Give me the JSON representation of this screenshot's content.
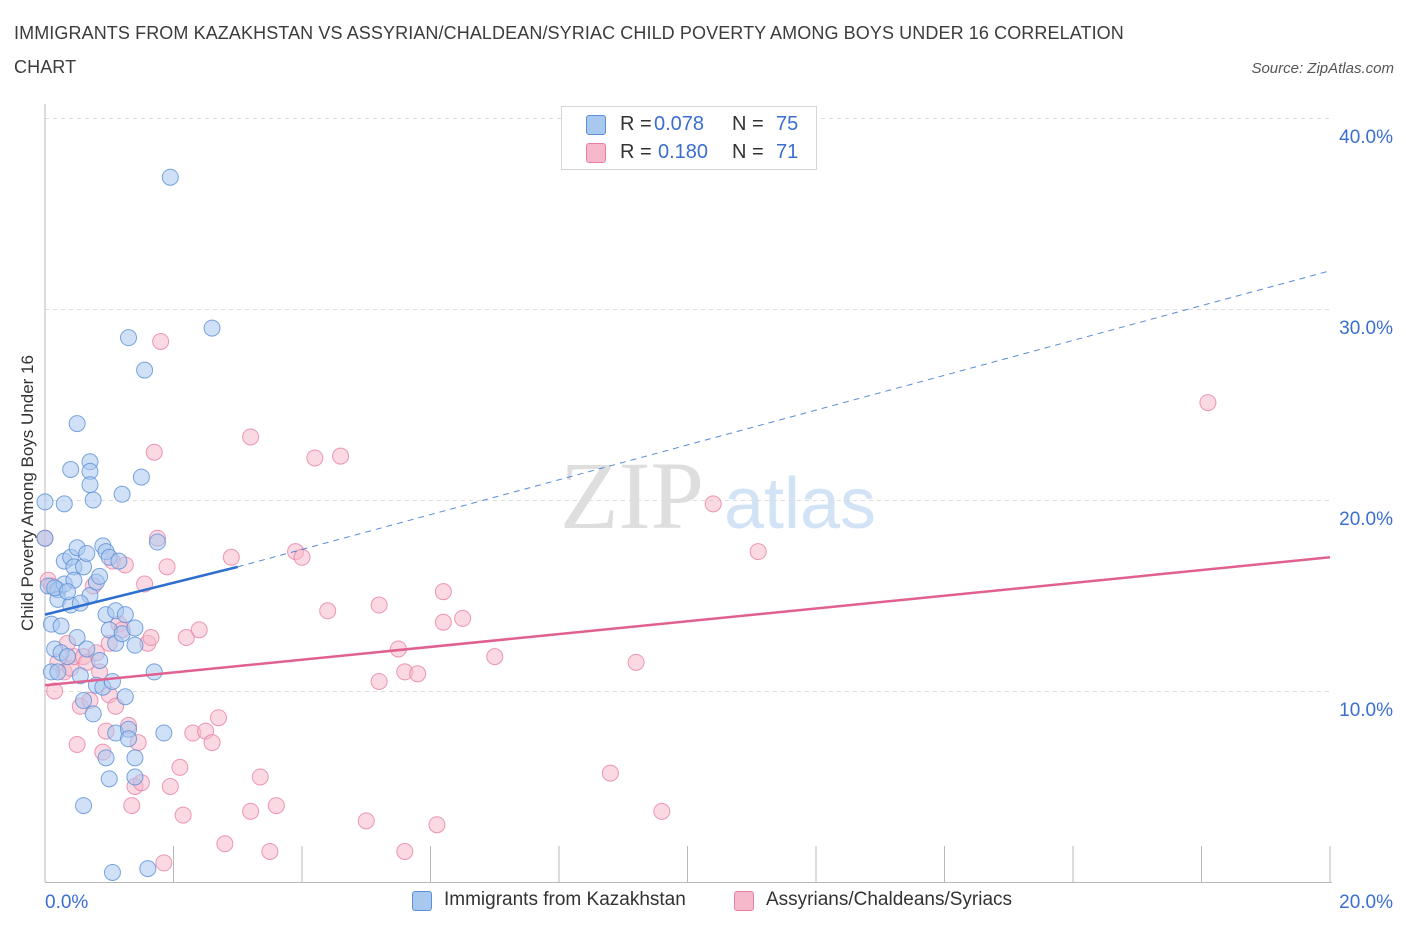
{
  "title": "IMMIGRANTS FROM KAZAKHSTAN VS ASSYRIAN/CHALDEAN/SYRIAC CHILD POVERTY AMONG BOYS UNDER 16 CORRELATION CHART",
  "source": "Source: ZipAtlas.com",
  "watermark": {
    "zip": "ZIP",
    "atlas": "atlas"
  },
  "legend": {
    "series1": {
      "r_label": "R =",
      "r_value": "0.078",
      "n_label": "N =",
      "n_value": "75"
    },
    "series2": {
      "r_label": "R =",
      "r_value": "0.180",
      "n_label": "N =",
      "n_value": "71"
    }
  },
  "colors": {
    "series1_fill": "#a9c8f0",
    "series1_stroke": "#5b8fd6",
    "series1_line": "#2f6fcf",
    "series2_fill": "#f6b9cc",
    "series2_stroke": "#e87fa3",
    "series2_line": "#e0608f",
    "grid": "#dcdcdc",
    "axis_text": "#3a6fd0"
  },
  "chart_data": {
    "type": "scatter",
    "title": "IMMIGRANTS FROM KAZAKHSTAN VS ASSYRIAN/CHALDEAN/SYRIAC CHILD POVERTY AMONG BOYS UNDER 16 CORRELATION CHART",
    "xlabel": "",
    "ylabel": "Child Poverty Among Boys Under 16",
    "xlim": [
      0,
      20
    ],
    "ylim": [
      0,
      40
    ],
    "x_tick_labels": [
      "0.0%",
      "20.0%"
    ],
    "y_ticks": [
      10,
      20,
      30,
      40
    ],
    "y_tick_labels": [
      "10.0%",
      "20.0%",
      "30.0%",
      "40.0%"
    ],
    "grid": true,
    "legend_position": "top-center",
    "series": [
      {
        "name": "Immigrants from Kazakhstan",
        "R": 0.078,
        "N": 75,
        "trend": {
          "x0": 0,
          "y0": 14.0,
          "x1": 3.0,
          "y1": 16.5,
          "dashed_to_x": 20,
          "dashed_to_y": 32.0
        },
        "points": [
          [
            0.0,
            19.9
          ],
          [
            0.0,
            18.0
          ],
          [
            0.05,
            15.5
          ],
          [
            0.1,
            13.5
          ],
          [
            0.1,
            11.0
          ],
          [
            0.15,
            12.2
          ],
          [
            0.2,
            15.3
          ],
          [
            0.2,
            14.8
          ],
          [
            0.25,
            12.0
          ],
          [
            0.3,
            19.8
          ],
          [
            0.3,
            16.8
          ],
          [
            0.3,
            15.6
          ],
          [
            0.35,
            11.8
          ],
          [
            0.4,
            21.6
          ],
          [
            0.4,
            17.0
          ],
          [
            0.4,
            14.5
          ],
          [
            0.45,
            16.5
          ],
          [
            0.45,
            15.8
          ],
          [
            0.5,
            24.0
          ],
          [
            0.5,
            17.5
          ],
          [
            0.5,
            12.8
          ],
          [
            0.55,
            10.8
          ],
          [
            0.6,
            9.5
          ],
          [
            0.6,
            4.0
          ],
          [
            0.6,
            16.5
          ],
          [
            0.65,
            17.2
          ],
          [
            0.7,
            22.0
          ],
          [
            0.7,
            21.5
          ],
          [
            0.7,
            20.8
          ],
          [
            0.7,
            15.0
          ],
          [
            0.75,
            20.0
          ],
          [
            0.75,
            8.8
          ],
          [
            0.8,
            15.7
          ],
          [
            0.8,
            10.3
          ],
          [
            0.85,
            16.0
          ],
          [
            0.9,
            17.6
          ],
          [
            0.9,
            10.2
          ],
          [
            0.95,
            17.3
          ],
          [
            0.95,
            14.0
          ],
          [
            0.95,
            6.5
          ],
          [
            1.0,
            5.4
          ],
          [
            1.0,
            13.2
          ],
          [
            1.0,
            17.0
          ],
          [
            1.05,
            10.5
          ],
          [
            1.05,
            0.5
          ],
          [
            1.1,
            14.2
          ],
          [
            1.1,
            12.5
          ],
          [
            1.1,
            7.8
          ],
          [
            1.15,
            16.8
          ],
          [
            1.2,
            13.0
          ],
          [
            1.2,
            20.3
          ],
          [
            1.25,
            9.7
          ],
          [
            1.25,
            14.0
          ],
          [
            1.3,
            8.0
          ],
          [
            1.3,
            7.5
          ],
          [
            1.3,
            28.5
          ],
          [
            1.4,
            13.3
          ],
          [
            1.4,
            12.4
          ],
          [
            1.4,
            5.5
          ],
          [
            1.4,
            6.5
          ],
          [
            1.5,
            21.2
          ],
          [
            1.55,
            26.8
          ],
          [
            1.6,
            0.7
          ],
          [
            1.7,
            11.0
          ],
          [
            1.75,
            17.8
          ],
          [
            1.85,
            7.8
          ],
          [
            1.95,
            36.9
          ],
          [
            2.6,
            29.0
          ],
          [
            0.15,
            15.4
          ],
          [
            0.25,
            13.4
          ],
          [
            0.35,
            15.2
          ],
          [
            0.55,
            14.6
          ],
          [
            0.65,
            12.2
          ],
          [
            0.85,
            11.6
          ],
          [
            0.2,
            11.0
          ]
        ]
      },
      {
        "name": "Assyrians/Chaldeans/Syriacs",
        "R": 0.18,
        "N": 71,
        "trend": {
          "x0": 0,
          "y0": 10.3,
          "x1": 20,
          "y1": 17.0
        },
        "points": [
          [
            0.0,
            18.0
          ],
          [
            0.05,
            15.8
          ],
          [
            0.1,
            15.5
          ],
          [
            0.15,
            10.0
          ],
          [
            0.2,
            11.5
          ],
          [
            0.3,
            11.0
          ],
          [
            0.35,
            12.5
          ],
          [
            0.4,
            11.2
          ],
          [
            0.45,
            11.8
          ],
          [
            0.5,
            7.2
          ],
          [
            0.55,
            9.2
          ],
          [
            0.6,
            11.8
          ],
          [
            0.65,
            11.5
          ],
          [
            0.7,
            9.5
          ],
          [
            0.75,
            15.5
          ],
          [
            0.8,
            12.0
          ],
          [
            0.85,
            11.0
          ],
          [
            0.9,
            6.8
          ],
          [
            0.95,
            7.9
          ],
          [
            1.0,
            12.5
          ],
          [
            1.0,
            9.8
          ],
          [
            1.05,
            16.8
          ],
          [
            1.1,
            9.2
          ],
          [
            1.15,
            13.5
          ],
          [
            1.2,
            13.2
          ],
          [
            1.25,
            16.6
          ],
          [
            1.3,
            8.2
          ],
          [
            1.35,
            4.0
          ],
          [
            1.4,
            5.0
          ],
          [
            1.45,
            7.3
          ],
          [
            1.5,
            5.2
          ],
          [
            1.55,
            15.6
          ],
          [
            1.6,
            12.5
          ],
          [
            1.65,
            12.8
          ],
          [
            1.7,
            22.5
          ],
          [
            1.75,
            18.0
          ],
          [
            1.8,
            28.3
          ],
          [
            1.85,
            1.0
          ],
          [
            1.9,
            16.5
          ],
          [
            1.95,
            5.0
          ],
          [
            2.1,
            6.0
          ],
          [
            2.15,
            3.5
          ],
          [
            2.2,
            12.8
          ],
          [
            2.3,
            7.8
          ],
          [
            2.4,
            13.2
          ],
          [
            2.5,
            7.9
          ],
          [
            2.6,
            7.3
          ],
          [
            2.7,
            8.6
          ],
          [
            2.8,
            2.0
          ],
          [
            2.9,
            17.0
          ],
          [
            3.2,
            3.7
          ],
          [
            3.2,
            23.3
          ],
          [
            3.35,
            5.5
          ],
          [
            3.5,
            1.6
          ],
          [
            3.6,
            4.0
          ],
          [
            3.9,
            17.3
          ],
          [
            4.0,
            17.0
          ],
          [
            4.2,
            22.2
          ],
          [
            4.4,
            14.2
          ],
          [
            4.6,
            22.3
          ],
          [
            5.0,
            3.2
          ],
          [
            5.2,
            10.5
          ],
          [
            5.2,
            14.5
          ],
          [
            5.5,
            12.2
          ],
          [
            5.6,
            11.0
          ],
          [
            5.6,
            1.6
          ],
          [
            5.8,
            10.9
          ],
          [
            6.1,
            3.0
          ],
          [
            6.2,
            15.2
          ],
          [
            6.2,
            13.6
          ],
          [
            6.5,
            13.8
          ]
        ],
        "extra_points": [
          [
            7.0,
            11.8
          ],
          [
            8.8,
            5.7
          ],
          [
            9.2,
            11.5
          ],
          [
            9.6,
            3.7
          ],
          [
            10.4,
            19.8
          ],
          [
            11.1,
            17.3
          ],
          [
            18.1,
            25.1
          ]
        ]
      }
    ]
  },
  "bottom_legend": {
    "series1_label": "Immigrants from Kazakhstan",
    "series2_label": "Assyrians/Chaldeans/Syriacs"
  }
}
